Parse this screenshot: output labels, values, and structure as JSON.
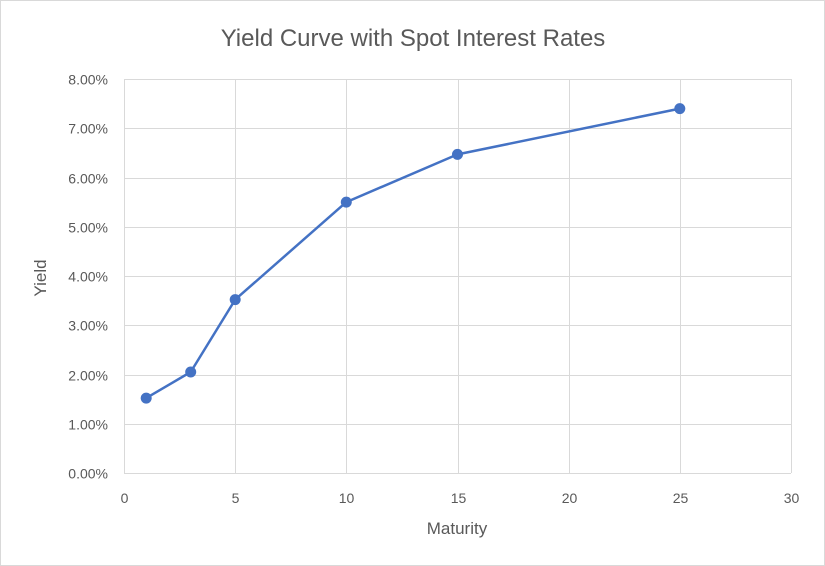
{
  "chart_data": {
    "type": "scatter",
    "title": "Yield Curve with Spot Interest Rates",
    "xlabel": "Maturity",
    "ylabel": "Yield",
    "xlim": [
      0,
      30
    ],
    "ylim": [
      0,
      0.08
    ],
    "x_ticks": [
      0,
      5,
      10,
      15,
      20,
      25,
      30
    ],
    "x_tick_labels": [
      "0",
      "5",
      "10",
      "15",
      "20",
      "25",
      "30"
    ],
    "y_ticks": [
      0,
      0.01,
      0.02,
      0.03,
      0.04,
      0.05,
      0.06,
      0.07,
      0.08
    ],
    "y_tick_labels": [
      "0.00%",
      "1.00%",
      "2.00%",
      "3.00%",
      "4.00%",
      "5.00%",
      "6.00%",
      "7.00%",
      "8.00%"
    ],
    "grid": true,
    "legend": "none",
    "series": [
      {
        "x": [
          1,
          3,
          5,
          10,
          15,
          25
        ],
        "y": [
          0.0152,
          0.0205,
          0.0352,
          0.055,
          0.0647,
          0.074
        ],
        "color": "#4472c4",
        "mode": "lines+markers"
      }
    ]
  }
}
